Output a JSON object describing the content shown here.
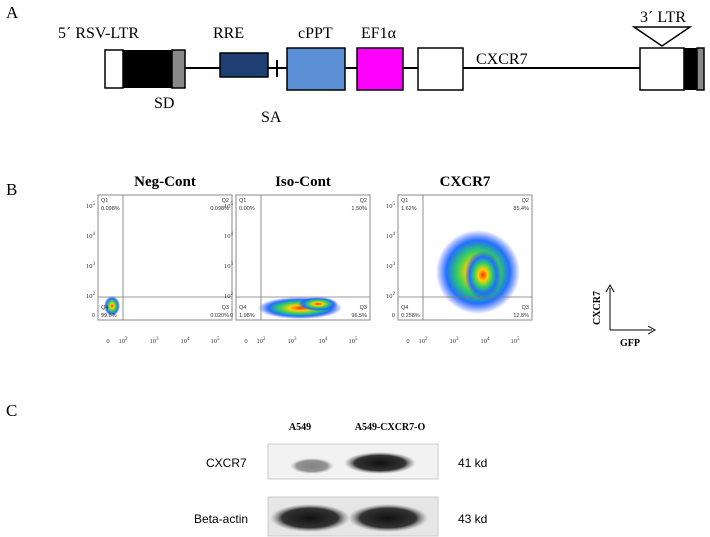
{
  "panel_labels": [
    "A",
    "B",
    "C"
  ],
  "vector_map": {
    "ltr5": "5´ RSV-LTR",
    "rre": "RRE",
    "cppt": "cPPT",
    "ef1a": "EF1α",
    "cxcr7": "CXCR7",
    "ltr3": "3´ LTR",
    "sd": "SD",
    "sa": "SA"
  },
  "flow": {
    "plots": [
      {
        "title": "Neg-Cont",
        "quadrants": [
          {
            "name": "Q1",
            "value": "0.098%"
          },
          {
            "name": "Q2",
            "value": "0.098%"
          },
          {
            "name": "Q3",
            "value": "0.020%"
          },
          {
            "name": "Q4",
            "value": "99.8%"
          }
        ]
      },
      {
        "title": "Iso-Cont",
        "quadrants": [
          {
            "name": "Q1",
            "value": "0.00%"
          },
          {
            "name": "Q2",
            "value": "1.50%"
          },
          {
            "name": "Q3",
            "value": "96.5%"
          },
          {
            "name": "Q4",
            "value": "1.98%"
          }
        ]
      },
      {
        "title": "CXCR7",
        "quadrants": [
          {
            "name": "Q1",
            "value": "1.62%"
          },
          {
            "name": "Q2",
            "value": "85.4%"
          },
          {
            "name": "Q3",
            "value": "12.8%"
          },
          {
            "name": "Q4",
            "value": "0.258%"
          }
        ]
      }
    ],
    "y_ticks": [
      {
        "base": "10",
        "exp": "5"
      },
      {
        "base": "10",
        "exp": "4"
      },
      {
        "base": "10",
        "exp": "3"
      },
      {
        "base": "10",
        "exp": "2"
      },
      {
        "base": "0"
      }
    ],
    "x_ticks": [
      {
        "base": "0"
      },
      {
        "base": "10",
        "exp": "2"
      },
      {
        "base": "10",
        "exp": "3"
      },
      {
        "base": "10",
        "exp": "4"
      },
      {
        "base": "10",
        "exp": "5"
      }
    ],
    "y_axis_label": "CXCR7",
    "x_axis_label": "GFP"
  },
  "western": {
    "lanes": [
      "A549",
      "A549-CXCR7-O"
    ],
    "rows": [
      {
        "protein": "CXCR7",
        "size": "41 kd"
      },
      {
        "protein": "Beta-actin",
        "size": "43 kd"
      }
    ]
  }
}
